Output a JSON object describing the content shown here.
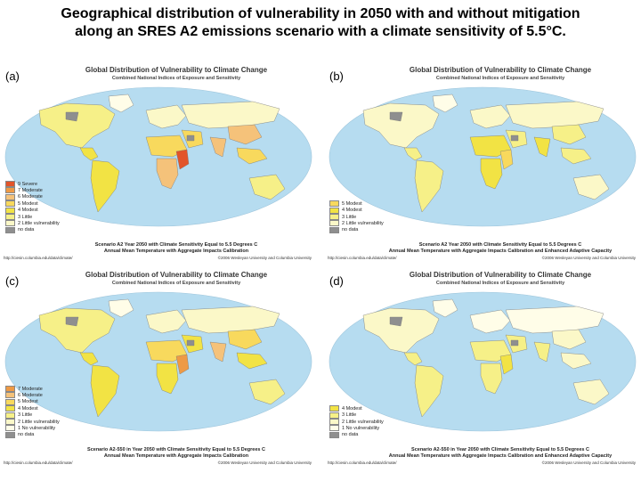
{
  "title_line1": "Geographical distribution of vulnerability in 2050 with and without mitigation",
  "title_line2": "along an SRES A2 emissions scenario with a climate sensitivity of 5.5°C.",
  "colors": {
    "ocean": "#b6dcf0",
    "severe": "#e2542a",
    "moderate7": "#ee9a45",
    "moderate6": "#f5c27a",
    "modest5": "#f8d95d",
    "modest4": "#f2e344",
    "little3": "#f6f088",
    "little2": "#fbf8c8",
    "novuln": "#fffde8",
    "nodata": "#8f8f8f"
  },
  "panels": [
    {
      "label": "(a)",
      "title": "Global Distribution of Vulnerability to Climate Change",
      "subtitle": "Combined National Indices of Exposure and Sensitivity",
      "caption1": "Scenario A2 Year 2050 with Climate Sensitivity Equal to 5.5 Degrees C",
      "caption2": "Annual Mean Temperature with Aggregate Impacts Calibration",
      "source": "http://ciesin.columbia.edu/data/climate/",
      "copyright": "©2006 Wesleyan University and Columbia University",
      "legend": [
        {
          "label": "9 Severe",
          "color": "#e2542a"
        },
        {
          "label": "7 Moderate",
          "color": "#ee9a45"
        },
        {
          "label": "6 Moderate",
          "color": "#f5c27a"
        },
        {
          "label": "5 Modest",
          "color": "#f8d95d"
        },
        {
          "label": "4 Modest",
          "color": "#f2e344"
        },
        {
          "label": "3 Little",
          "color": "#f6f088"
        },
        {
          "label": "2 Little vulnerability",
          "color": "#fbf8c8"
        },
        {
          "label": "no data",
          "color": "#8f8f8f"
        }
      ],
      "regions": {
        "na": "#f6f088",
        "greenland": "#fffde8",
        "ca": "#f2e344",
        "sa": "#f2e344",
        "eu": "#fbf8c8",
        "nafrica": "#f8d95d",
        "safrica": "#f5c27a",
        "eafrica": "#e2542a",
        "me": "#f8d95d",
        "asia": "#fbf8c8",
        "china": "#f5c27a",
        "india": "#f5c27a",
        "sea": "#f8d95d",
        "aus": "#f6f088",
        "nodata1": "#8f8f8f",
        "nodata2": "#8f8f8f"
      }
    },
    {
      "label": "(b)",
      "title": "Global Distribution of Vulnerability to Climate Change",
      "subtitle": "Combined National Indices of Exposure and Sensitivity",
      "caption1": "Scenario A2 Year 2050 with Climate Sensitivity Equal to 5.5 Degrees C",
      "caption2": "Annual Mean Temperature with Aggregate Impacts Calibration and Enhanced Adaptive Capacity",
      "source": "http://ciesin.columbia.edu/data/climate/",
      "copyright": "©2006 Wesleyan University and Columbia University",
      "legend": [
        {
          "label": "5 Modest",
          "color": "#f8d95d"
        },
        {
          "label": "4 Modest",
          "color": "#f2e344"
        },
        {
          "label": "3 Little",
          "color": "#f6f088"
        },
        {
          "label": "2 Little vulnerability",
          "color": "#fbf8c8"
        },
        {
          "label": "no data",
          "color": "#8f8f8f"
        }
      ],
      "regions": {
        "na": "#fbf8c8",
        "greenland": "#fffde8",
        "ca": "#f6f088",
        "sa": "#f6f088",
        "eu": "#fbf8c8",
        "nafrica": "#f2e344",
        "safrica": "#f2e344",
        "eafrica": "#f8d95d",
        "me": "#f6f088",
        "asia": "#fbf8c8",
        "china": "#f6f088",
        "india": "#f2e344",
        "sea": "#f6f088",
        "aus": "#fbf8c8",
        "nodata1": "#8f8f8f",
        "nodata2": "#8f8f8f"
      }
    },
    {
      "label": "(c)",
      "title": "Global Distribution of Vulnerability to Climate Change",
      "subtitle": "Combined National Indices of Exposure and Sensitivity",
      "caption1": "Scenario A2-550 in Year 2050 with Climate Sensitivity Equal to 5.5 Degrees C",
      "caption2": "Annual Mean Temperature with Aggregate Impacts Calibration",
      "source": "http://ciesin.columbia.edu/data/climate/",
      "copyright": "©2006 Wesleyan University and Columbia University",
      "legend": [
        {
          "label": "7 Moderate",
          "color": "#ee9a45"
        },
        {
          "label": "6 Moderate",
          "color": "#f5c27a"
        },
        {
          "label": "5 Modest",
          "color": "#f8d95d"
        },
        {
          "label": "4 Modest",
          "color": "#f2e344"
        },
        {
          "label": "3 Little",
          "color": "#f6f088"
        },
        {
          "label": "2 Little vulnerability",
          "color": "#fbf8c8"
        },
        {
          "label": "1 No vulnerability",
          "color": "#fffde8"
        },
        {
          "label": "no data",
          "color": "#8f8f8f"
        }
      ],
      "regions": {
        "na": "#f6f088",
        "greenland": "#fffde8",
        "ca": "#f2e344",
        "sa": "#f2e344",
        "eu": "#fbf8c8",
        "nafrica": "#f8d95d",
        "safrica": "#f2e344",
        "eafrica": "#ee9a45",
        "me": "#f2e344",
        "asia": "#fbf8c8",
        "china": "#f8d95d",
        "india": "#f5c27a",
        "sea": "#f2e344",
        "aus": "#f6f088",
        "nodata1": "#8f8f8f",
        "nodata2": "#8f8f8f"
      }
    },
    {
      "label": "(d)",
      "title": "Global Distribution of Vulnerability to Climate Change",
      "subtitle": "Combined National Indices of Exposure and Sensitivity",
      "caption1": "Scenario A2-550 in Year 2050 with Climate Sensitivity Equal to 5.5 Degrees C",
      "caption2": "Annual Mean Temperature with Aggregate Impacts Calibration and Enhanced Adaptive Capacity",
      "source": "http://ciesin.columbia.edu/data/climate/",
      "copyright": "©2006 Wesleyan University and Columbia University",
      "legend": [
        {
          "label": "4 Modest",
          "color": "#f2e344"
        },
        {
          "label": "3 Little",
          "color": "#f6f088"
        },
        {
          "label": "2 Little vulnerability",
          "color": "#fbf8c8"
        },
        {
          "label": "1 No vulnerability",
          "color": "#fffde8"
        },
        {
          "label": "no data",
          "color": "#8f8f8f"
        }
      ],
      "regions": {
        "na": "#fbf8c8",
        "greenland": "#fffde8",
        "ca": "#f6f088",
        "sa": "#f6f088",
        "eu": "#fffde8",
        "nafrica": "#f6f088",
        "safrica": "#f6f088",
        "eafrica": "#f2e344",
        "me": "#f6f088",
        "asia": "#fffde8",
        "china": "#fbf8c8",
        "india": "#f6f088",
        "sea": "#fbf8c8",
        "aus": "#fbf8c8",
        "nodata1": "#8f8f8f",
        "nodata2": "#8f8f8f"
      }
    }
  ]
}
